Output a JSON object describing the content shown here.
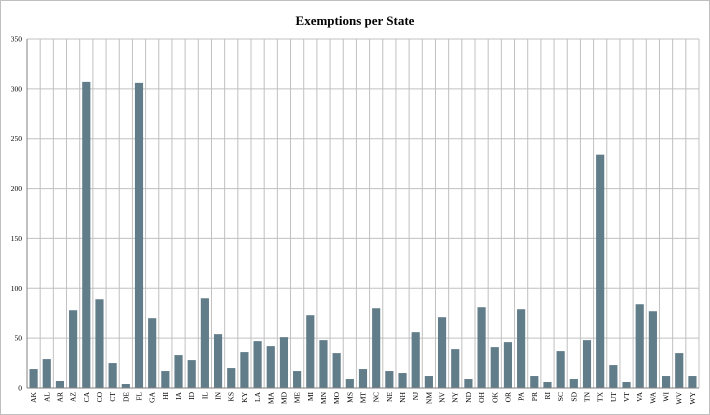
{
  "chart_data": {
    "type": "bar",
    "title": "Exemptions per State",
    "xlabel": "",
    "ylabel": "",
    "ylim": [
      0,
      350
    ],
    "yticks": [
      0,
      50,
      100,
      150,
      200,
      250,
      300,
      350
    ],
    "grid": true,
    "legend": "none",
    "categories": [
      "AK",
      "AL",
      "AR",
      "AZ",
      "CA",
      "CO",
      "CT",
      "DE",
      "FL",
      "GA",
      "HI",
      "IA",
      "ID",
      "IL",
      "IN",
      "KS",
      "KY",
      "LA",
      "MA",
      "MD",
      "ME",
      "MI",
      "MN",
      "MO",
      "MS",
      "MT",
      "NC",
      "NE",
      "NH",
      "NJ",
      "NM",
      "NV",
      "NY",
      "ND",
      "OH",
      "OK",
      "OR",
      "PA",
      "PR",
      "RI",
      "SC",
      "SD",
      "TN",
      "TX",
      "UT",
      "VT",
      "VA",
      "WA",
      "WI",
      "WV",
      "WY"
    ],
    "values": [
      19,
      29,
      7,
      78,
      307,
      89,
      25,
      4,
      306,
      70,
      17,
      33,
      28,
      90,
      54,
      20,
      36,
      47,
      42,
      51,
      17,
      73,
      48,
      35,
      9,
      19,
      80,
      17,
      15,
      56,
      12,
      71,
      39,
      9,
      81,
      41,
      46,
      79,
      12,
      6,
      37,
      9,
      48,
      234,
      23,
      6,
      84,
      77,
      12,
      35,
      12
    ],
    "colors": {
      "bar": "#627d8a",
      "grid": "#c0c0c0",
      "axis": "#808080"
    }
  }
}
